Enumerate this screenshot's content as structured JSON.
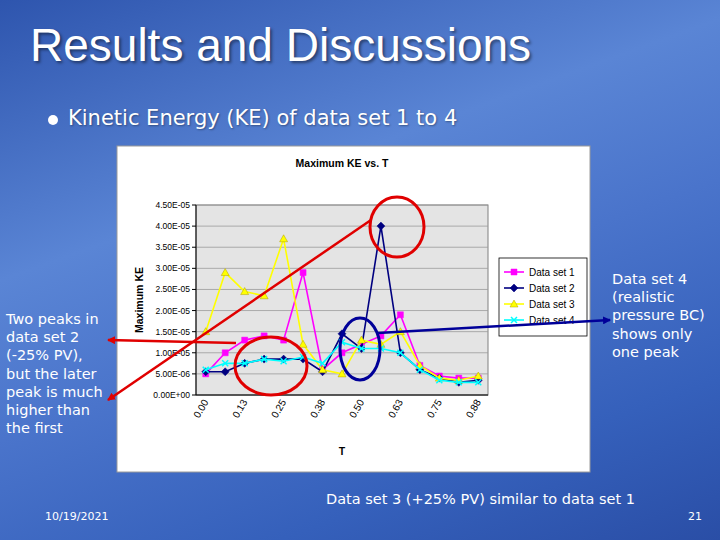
{
  "slide": {
    "title": "Results and Discussions",
    "bullet": "Kinetic Energy (KE) of data set 1 to 4",
    "date": "10/19/2021",
    "page_number": "21"
  },
  "chart_data": {
    "type": "line",
    "title": "Maximum KE vs. T",
    "x_label": "T",
    "y_label": "Maximum KE",
    "categories": [
      "0.00",
      null,
      "0.13",
      null,
      "0.25",
      null,
      "0.38",
      null,
      "0.50",
      null,
      "0.63",
      null,
      "0.75",
      null,
      "0.88"
    ],
    "series": [
      {
        "name": "Data set 1",
        "color": "#ff00ff",
        "marker": "square",
        "values": [
          5e-06,
          1e-05,
          1.3e-05,
          1.4e-05,
          1.3e-05,
          2.9e-05,
          6e-06,
          1e-05,
          1.2e-05,
          1.4e-05,
          1.9e-05,
          7e-06,
          4.5e-06,
          4e-06,
          4e-06
        ]
      },
      {
        "name": "Data set 2",
        "color": "#000080",
        "marker": "diamond",
        "values": [
          5.5e-06,
          5.5e-06,
          7.5e-06,
          8.5e-06,
          8.5e-06,
          8.5e-06,
          5.5e-06,
          1.45e-05,
          1.1e-05,
          4e-05,
          1e-05,
          6e-06,
          4e-06,
          3e-06,
          3.5e-06
        ]
      },
      {
        "name": "Data set 3",
        "color": "#ffff00",
        "marker": "triangle",
        "values": [
          1.5e-05,
          2.9e-05,
          2.45e-05,
          2.35e-05,
          3.7e-05,
          1.2e-05,
          6e-06,
          5e-06,
          1.3e-05,
          1.2e-05,
          1.5e-05,
          7e-06,
          4e-06,
          3.5e-06,
          4.5e-06
        ]
      },
      {
        "name": "Data set 4",
        "color": "#00ffff",
        "marker": "x",
        "values": [
          6e-06,
          7.5e-06,
          7.5e-06,
          8.5e-06,
          8e-06,
          9e-06,
          7.5e-06,
          1.25e-05,
          1.1e-05,
          1.1e-05,
          1e-05,
          6e-06,
          3.5e-06,
          3e-06,
          3e-06
        ]
      }
    ],
    "ylim": [
      0,
      4.5e-05
    ],
    "yticks": [
      {
        "value": 0,
        "label": "0.00E+00"
      },
      {
        "value": 5e-06,
        "label": "5.00E-06"
      },
      {
        "value": 1e-05,
        "label": "1.00E-05"
      },
      {
        "value": 1.5e-05,
        "label": "1.50E-05"
      },
      {
        "value": 2e-05,
        "label": "2.00E-05"
      },
      {
        "value": 2.5e-05,
        "label": "2.50E-05"
      },
      {
        "value": 3e-05,
        "label": "3.00E-05"
      },
      {
        "value": 3.5e-05,
        "label": "3.50E-05"
      },
      {
        "value": 4e-05,
        "label": "4.00E-05"
      },
      {
        "value": 4.5e-05,
        "label": "4.50E-05"
      }
    ],
    "grid": true,
    "legend": "right",
    "annotations": [
      "Two peaks in data set 2 (-25% PV), but the later peak is much higher than the first",
      "Data set 4 (realistic pressure BC) shows only one peak",
      "Data set 3 (+25% PV) similar to data set 1"
    ]
  }
}
